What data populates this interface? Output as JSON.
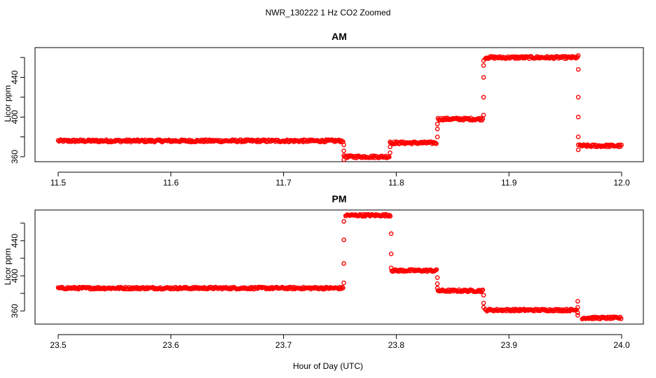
{
  "chart_data": {
    "title": "NWR_130222  1 Hz CO2 Zoomed",
    "xlabel": "Hour of Day (UTC)",
    "panels": [
      {
        "type": "scatter",
        "title": "AM",
        "ylabel": "Licor ppm",
        "xlim": [
          11.5,
          12.0
        ],
        "ylim": [
          355,
          470
        ],
        "x_ticks": [
          11.5,
          11.6,
          11.7,
          11.8,
          11.9,
          12.0
        ],
        "x_tick_labels": [
          "11.5",
          "11.6",
          "11.7",
          "11.8",
          "11.9",
          "12.0"
        ],
        "y_ticks": [
          360,
          400,
          440
        ],
        "y_tick_labels": [
          "360",
          "400",
          "440"
        ],
        "color": "#ff0000",
        "segments": [
          {
            "x0": 11.5,
            "x1": 11.753,
            "y": 376
          },
          {
            "x0": 11.754,
            "x1": 11.794,
            "y": 360
          },
          {
            "x0": 11.795,
            "x1": 11.836,
            "y": 374
          },
          {
            "x0": 11.837,
            "x1": 11.877,
            "y": 398
          },
          {
            "x0": 11.879,
            "x1": 11.961,
            "y": 460
          },
          {
            "x0": 11.963,
            "x1": 12.0,
            "y": 371
          }
        ],
        "transitions": [
          {
            "x": 11.7535,
            "ys": [
              372,
              366,
              361,
              357
            ]
          },
          {
            "x": 11.7945,
            "ys": [
              364,
              370,
              375
            ]
          },
          {
            "x": 11.8365,
            "ys": [
              380,
              388,
              393
            ]
          },
          {
            "x": 11.8775,
            "ys": [
              402,
              420,
              440,
              452,
              457
            ]
          },
          {
            "x": 11.9615,
            "ys": [
              462,
              448,
              420,
              400,
              380,
              372,
              367
            ]
          }
        ]
      },
      {
        "type": "scatter",
        "title": "PM",
        "ylabel": "Licor ppm",
        "xlim": [
          23.5,
          24.0
        ],
        "ylim": [
          345,
          475
        ],
        "x_ticks": [
          23.5,
          23.6,
          23.7,
          23.8,
          23.9,
          24.0
        ],
        "x_tick_labels": [
          "23.5",
          "23.6",
          "23.7",
          "23.8",
          "23.9",
          "24.0"
        ],
        "y_ticks": [
          360,
          400,
          440
        ],
        "y_tick_labels": [
          "360",
          "400",
          "440"
        ],
        "color": "#ff0000",
        "segments": [
          {
            "x0": 23.5,
            "x1": 23.753,
            "y": 386
          },
          {
            "x0": 23.755,
            "x1": 23.795,
            "y": 469
          },
          {
            "x0": 23.796,
            "x1": 23.836,
            "y": 406
          },
          {
            "x0": 23.837,
            "x1": 23.877,
            "y": 383
          },
          {
            "x0": 23.879,
            "x1": 23.96,
            "y": 361
          },
          {
            "x0": 23.965,
            "x1": 24.0,
            "y": 352
          }
        ],
        "transitions": [
          {
            "x": 23.7535,
            "ys": [
              392,
              414,
              441,
              462
            ]
          },
          {
            "x": 23.7955,
            "ys": [
              448,
              425,
              409
            ]
          },
          {
            "x": 23.8365,
            "ys": [
              398,
              391,
              386
            ]
          },
          {
            "x": 23.8775,
            "ys": [
              378,
              369,
              364
            ]
          },
          {
            "x": 23.961,
            "ys": [
              371,
              364,
              358,
              355
            ]
          }
        ]
      }
    ]
  }
}
